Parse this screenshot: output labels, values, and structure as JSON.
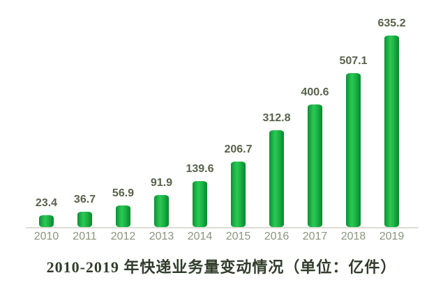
{
  "chart_data": {
    "type": "bar",
    "categories": [
      "2010",
      "2011",
      "2012",
      "2013",
      "2014",
      "2015",
      "2016",
      "2017",
      "2018",
      "2019"
    ],
    "values": [
      23.4,
      36.7,
      56.9,
      91.9,
      139.6,
      206.7,
      312.8,
      400.6,
      507.1,
      635.2
    ],
    "value_labels": [
      "23.4",
      "36.7",
      "56.9",
      "91.9",
      "139.6",
      "206.7",
      "312.8",
      "400.6",
      "507.1",
      "635.2"
    ],
    "title": "2010-2019 年快递业务量变动情况（单位：亿件）",
    "unit": "亿件",
    "xlabel": "",
    "ylabel": "",
    "ylim": [
      0,
      650
    ],
    "grid": false,
    "legend": "none",
    "style": {
      "background": "#ffffff",
      "bar_gradient_edge": "#0b8c31",
      "bar_gradient_mid": "#2bc953",
      "bar_gradient_edge2": "#0a8a2e",
      "value_label_color": "#57624a",
      "year_label_color": "#8a947c",
      "title_color": "#313d2b",
      "axis_line_color": "#dcdcd4"
    }
  }
}
